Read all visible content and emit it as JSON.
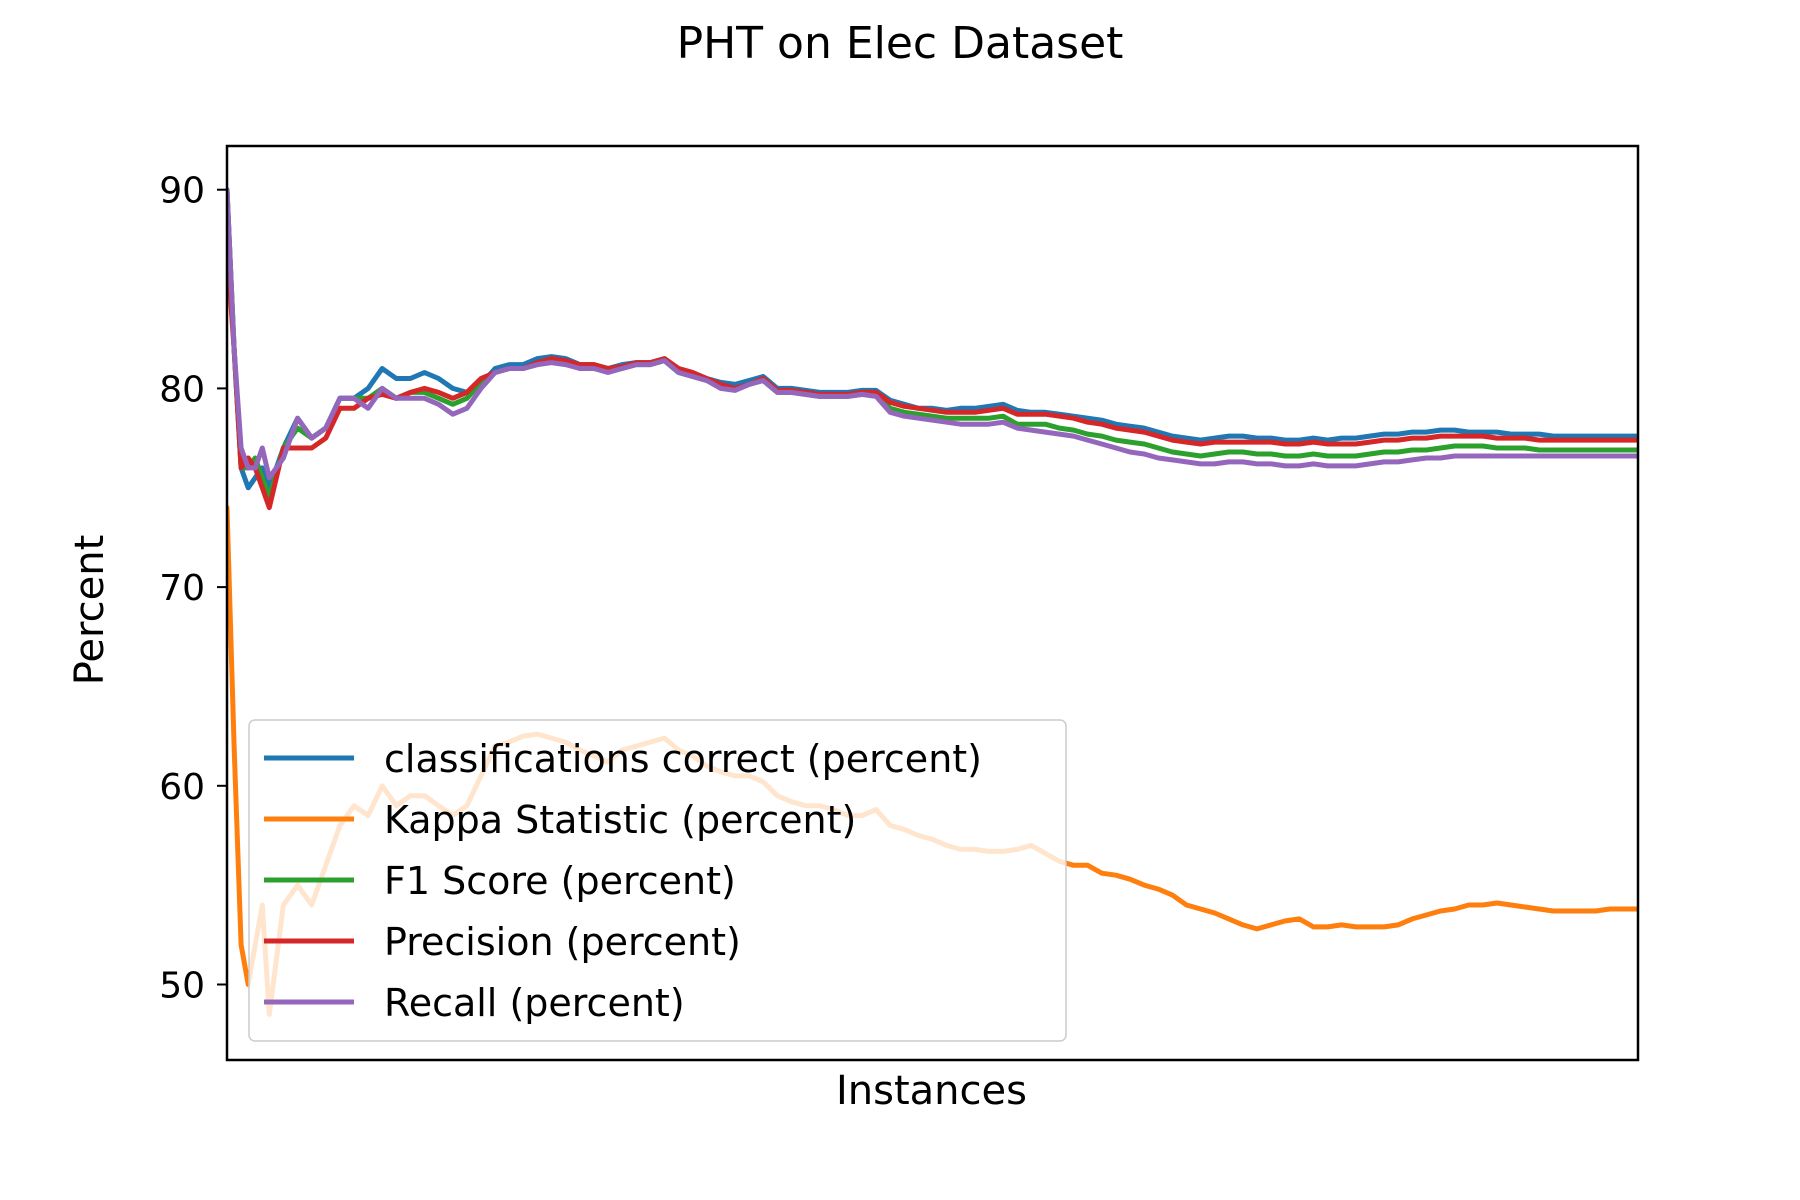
{
  "chart_data": {
    "type": "line",
    "title": "PHT on Elec Dataset",
    "xlabel": "Instances",
    "ylabel": "Percent",
    "ylim": [
      46.2,
      92.2
    ],
    "xlim": [
      0,
      100
    ],
    "yticks": [
      50,
      60,
      70,
      80,
      90
    ],
    "xticks": [],
    "grid": false,
    "legend_position": "lower-left",
    "x": [
      0,
      0.5,
      1,
      1.5,
      2,
      2.5,
      3,
      4,
      5,
      6,
      7,
      8,
      9,
      10,
      11,
      12,
      13,
      14,
      15,
      16,
      17,
      18,
      19,
      20,
      21,
      22,
      23,
      24,
      25,
      26,
      27,
      28,
      29,
      30,
      31,
      32,
      33,
      34,
      35,
      36,
      37,
      38,
      39,
      40,
      41,
      42,
      43,
      44,
      45,
      46,
      47,
      48,
      49,
      50,
      51,
      52,
      53,
      54,
      55,
      56,
      57,
      58,
      59,
      60,
      61,
      62,
      63,
      64,
      65,
      66,
      67,
      68,
      69,
      70,
      71,
      72,
      73,
      74,
      75,
      76,
      77,
      78,
      79,
      80,
      81,
      82,
      83,
      84,
      85,
      86,
      87,
      88,
      89,
      90,
      91,
      92,
      93,
      94,
      95,
      96,
      97,
      98,
      99,
      100
    ],
    "series": [
      {
        "name": "classifications correct (percent)",
        "color": "#1f77b4",
        "values": [
          90,
          82,
          76,
          75,
          75.5,
          76,
          75,
          77,
          78.5,
          77.5,
          78,
          79.5,
          79.5,
          80,
          81,
          80.5,
          80.5,
          80.8,
          80.5,
          80,
          79.8,
          80.2,
          81,
          81.2,
          81.2,
          81.5,
          81.6,
          81.5,
          81.2,
          81.2,
          81,
          81.2,
          81.3,
          81.3,
          81.5,
          81,
          80.8,
          80.5,
          80.3,
          80.2,
          80.4,
          80.6,
          80,
          80,
          79.9,
          79.8,
          79.8,
          79.8,
          79.9,
          79.9,
          79.4,
          79.2,
          79,
          79,
          78.9,
          79,
          79,
          79.1,
          79.2,
          78.9,
          78.8,
          78.8,
          78.7,
          78.6,
          78.5,
          78.4,
          78.2,
          78.1,
          78,
          77.8,
          77.6,
          77.5,
          77.4,
          77.5,
          77.6,
          77.6,
          77.5,
          77.5,
          77.4,
          77.4,
          77.5,
          77.4,
          77.5,
          77.5,
          77.6,
          77.7,
          77.7,
          77.8,
          77.8,
          77.9,
          77.9,
          77.8,
          77.8,
          77.8,
          77.7,
          77.7,
          77.7,
          77.6,
          77.6,
          77.6,
          77.6,
          77.6,
          77.6,
          77.6
        ]
      },
      {
        "name": "Kappa Statistic (percent)",
        "color": "#ff7f0e",
        "values": [
          74,
          62,
          52,
          50,
          52,
          54,
          48.5,
          54,
          55,
          54,
          56,
          58,
          59,
          58.5,
          60,
          59,
          59.5,
          59.5,
          59,
          58.5,
          59,
          60.5,
          62,
          62.2,
          62.5,
          62.6,
          62.4,
          62.2,
          61.8,
          61.5,
          61.2,
          61.8,
          62,
          62.2,
          62.4,
          61.8,
          61.5,
          61,
          60.7,
          60.5,
          60.5,
          60.2,
          59.5,
          59.2,
          59,
          59,
          58.8,
          58.5,
          58.5,
          58.8,
          58,
          57.8,
          57.5,
          57.3,
          57,
          56.8,
          56.8,
          56.7,
          56.7,
          56.8,
          57,
          56.6,
          56.2,
          56,
          56,
          55.6,
          55.5,
          55.3,
          55,
          54.8,
          54.5,
          54,
          53.8,
          53.6,
          53.3,
          53,
          52.8,
          53,
          53.2,
          53.3,
          52.9,
          52.9,
          53,
          52.9,
          52.9,
          52.9,
          53,
          53.3,
          53.5,
          53.7,
          53.8,
          54,
          54,
          54.1,
          54,
          53.9,
          53.8,
          53.7,
          53.7,
          53.7,
          53.7,
          53.8,
          53.8,
          53.8
        ]
      },
      {
        "name": "F1 Score (percent)",
        "color": "#2ca02c",
        "values": [
          90,
          82,
          76,
          76,
          76.5,
          75.5,
          74.5,
          77,
          78,
          77.5,
          78,
          79.5,
          79.5,
          79.5,
          80,
          79.5,
          79.8,
          79.8,
          79.5,
          79.2,
          79.5,
          80.3,
          80.8,
          81,
          81,
          81.2,
          81.4,
          81.3,
          81.1,
          81,
          80.9,
          81,
          81.2,
          81.2,
          81.4,
          80.8,
          80.6,
          80.4,
          80.1,
          80,
          80.2,
          80.4,
          79.8,
          79.8,
          79.7,
          79.6,
          79.6,
          79.6,
          79.7,
          79.7,
          79,
          78.8,
          78.7,
          78.6,
          78.5,
          78.5,
          78.5,
          78.5,
          78.6,
          78.2,
          78.2,
          78.2,
          78,
          77.9,
          77.7,
          77.6,
          77.4,
          77.3,
          77.2,
          77,
          76.8,
          76.7,
          76.6,
          76.7,
          76.8,
          76.8,
          76.7,
          76.7,
          76.6,
          76.6,
          76.7,
          76.6,
          76.6,
          76.6,
          76.7,
          76.8,
          76.8,
          76.9,
          76.9,
          77,
          77.1,
          77.1,
          77.1,
          77,
          77,
          77,
          76.9,
          76.9,
          76.9,
          76.9,
          76.9,
          76.9,
          76.9,
          76.9
        ]
      },
      {
        "name": "Precision (percent)",
        "color": "#d62728",
        "values": [
          87,
          82,
          76,
          76.5,
          76,
          75,
          74,
          77,
          77,
          77,
          77.5,
          79,
          79,
          79.5,
          79.7,
          79.5,
          79.8,
          80,
          79.8,
          79.5,
          79.8,
          80.5,
          80.8,
          81,
          81,
          81.3,
          81.5,
          81.4,
          81.2,
          81.2,
          81,
          81.1,
          81.3,
          81.3,
          81.5,
          81,
          80.8,
          80.5,
          80.2,
          80,
          80.2,
          80.5,
          79.9,
          79.9,
          79.8,
          79.7,
          79.7,
          79.7,
          79.8,
          79.8,
          79.3,
          79.1,
          79,
          78.9,
          78.8,
          78.8,
          78.8,
          78.9,
          79,
          78.7,
          78.7,
          78.7,
          78.6,
          78.5,
          78.3,
          78.2,
          78,
          77.9,
          77.8,
          77.6,
          77.4,
          77.3,
          77.2,
          77.3,
          77.3,
          77.3,
          77.3,
          77.3,
          77.2,
          77.2,
          77.3,
          77.2,
          77.2,
          77.2,
          77.3,
          77.4,
          77.4,
          77.5,
          77.5,
          77.6,
          77.6,
          77.6,
          77.6,
          77.5,
          77.5,
          77.5,
          77.4,
          77.4,
          77.4,
          77.4,
          77.4,
          77.4,
          77.4,
          77.4
        ]
      },
      {
        "name": "Recall (percent)",
        "color": "#9467bd",
        "values": [
          90,
          82,
          77,
          76,
          76,
          77,
          75.5,
          76.5,
          78.5,
          77.5,
          78,
          79.5,
          79.5,
          79,
          80,
          79.5,
          79.5,
          79.5,
          79.2,
          78.7,
          79,
          80,
          80.8,
          81,
          81,
          81.2,
          81.3,
          81.2,
          81,
          81,
          80.8,
          81,
          81.2,
          81.2,
          81.4,
          80.8,
          80.6,
          80.4,
          80,
          79.9,
          80.2,
          80.4,
          79.8,
          79.8,
          79.7,
          79.6,
          79.6,
          79.6,
          79.7,
          79.6,
          78.8,
          78.6,
          78.5,
          78.4,
          78.3,
          78.2,
          78.2,
          78.2,
          78.3,
          78,
          77.9,
          77.8,
          77.7,
          77.6,
          77.4,
          77.2,
          77,
          76.8,
          76.7,
          76.5,
          76.4,
          76.3,
          76.2,
          76.2,
          76.3,
          76.3,
          76.2,
          76.2,
          76.1,
          76.1,
          76.2,
          76.1,
          76.1,
          76.1,
          76.2,
          76.3,
          76.3,
          76.4,
          76.5,
          76.5,
          76.6,
          76.6,
          76.6,
          76.6,
          76.6,
          76.6,
          76.6,
          76.6,
          76.6,
          76.6,
          76.6,
          76.6,
          76.6,
          76.6
        ]
      }
    ]
  }
}
